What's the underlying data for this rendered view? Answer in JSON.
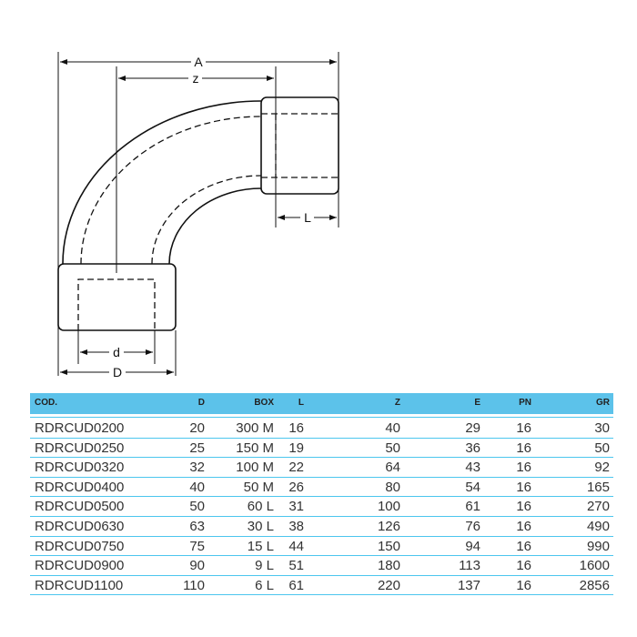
{
  "drawing_labels": {
    "A": "A",
    "z": "z",
    "L": "L",
    "d": "d",
    "D": "D"
  },
  "table": {
    "headers": [
      "COD.",
      "D",
      "BOX",
      "L",
      "Z",
      "E",
      "PN",
      "GR"
    ],
    "rows": [
      [
        "RDRCUD0200",
        "20",
        "300 M",
        "16",
        "40",
        "29",
        "16",
        "30"
      ],
      [
        "RDRCUD0250",
        "25",
        "150 M",
        "19",
        "50",
        "36",
        "16",
        "50"
      ],
      [
        "RDRCUD0320",
        "32",
        "100 M",
        "22",
        "64",
        "43",
        "16",
        "92"
      ],
      [
        "RDRCUD0400",
        "40",
        "50 M",
        "26",
        "80",
        "54",
        "16",
        "165"
      ],
      [
        "RDRCUD0500",
        "50",
        "60 L",
        "31",
        "100",
        "61",
        "16",
        "270"
      ],
      [
        "RDRCUD0630",
        "63",
        "30 L",
        "38",
        "126",
        "76",
        "16",
        "490"
      ],
      [
        "RDRCUD0750",
        "75",
        "15 L",
        "44",
        "150",
        "94",
        "16",
        "990"
      ],
      [
        "RDRCUD0900",
        "90",
        "9 L",
        "51",
        "180",
        "113",
        "16",
        "1600"
      ],
      [
        "RDRCUD1100",
        "110",
        "6 L",
        "61",
        "220",
        "137",
        "16",
        "2856"
      ]
    ]
  },
  "colors": {
    "header_bg": "#5cc2ea",
    "row_line": "#4cc6ee"
  }
}
